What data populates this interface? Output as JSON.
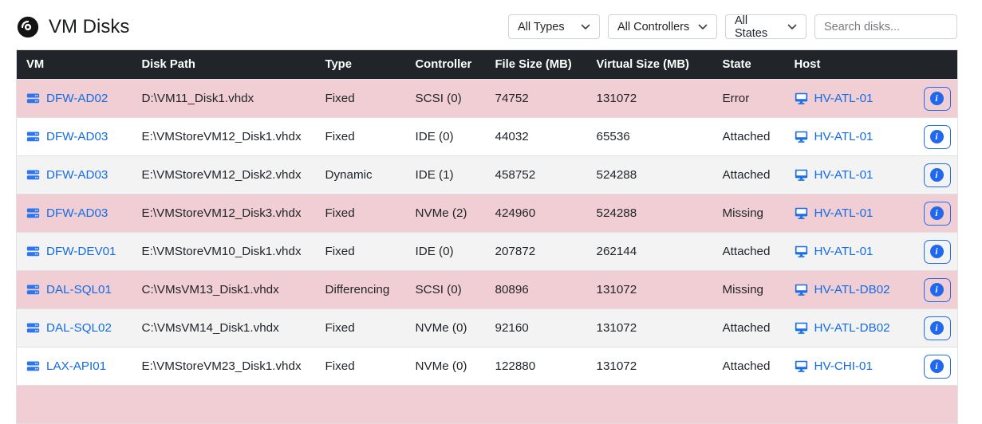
{
  "header": {
    "title": "VM Disks",
    "icon": "disc-icon"
  },
  "filters": {
    "type_filter": "All Types",
    "controller_filter": "All Controllers",
    "state_filter": "All States",
    "search_placeholder": "Search disks..."
  },
  "table": {
    "columns": [
      "VM",
      "Disk Path",
      "Type",
      "Controller",
      "File Size (MB)",
      "Virtual Size (MB)",
      "State",
      "Host"
    ],
    "info_button_label": "i",
    "rows": [
      {
        "vm": "DFW-AD02",
        "disk_path": "D:\\VM11_Disk1.vhdx",
        "type": "Fixed",
        "controller": "SCSI (0)",
        "file_size_mb": "74752",
        "virtual_size_mb": "131072",
        "state": "Error",
        "host": "HV-ATL-01",
        "highlight": "danger",
        "striped": false
      },
      {
        "vm": "DFW-AD03",
        "disk_path": "E:\\VMStoreVM12_Disk1.vhdx",
        "type": "Fixed",
        "controller": "IDE (0)",
        "file_size_mb": "44032",
        "virtual_size_mb": "65536",
        "state": "Attached",
        "host": "HV-ATL-01",
        "highlight": "none",
        "striped": false
      },
      {
        "vm": "DFW-AD03",
        "disk_path": "E:\\VMStoreVM12_Disk2.vhdx",
        "type": "Dynamic",
        "controller": "IDE (1)",
        "file_size_mb": "458752",
        "virtual_size_mb": "524288",
        "state": "Attached",
        "host": "HV-ATL-01",
        "highlight": "none",
        "striped": true
      },
      {
        "vm": "DFW-AD03",
        "disk_path": "E:\\VMStoreVM12_Disk3.vhdx",
        "type": "Fixed",
        "controller": "NVMe (2)",
        "file_size_mb": "424960",
        "virtual_size_mb": "524288",
        "state": "Missing",
        "host": "HV-ATL-01",
        "highlight": "danger",
        "striped": false
      },
      {
        "vm": "DFW-DEV01",
        "disk_path": "E:\\VMStoreVM10_Disk1.vhdx",
        "type": "Fixed",
        "controller": "IDE (0)",
        "file_size_mb": "207872",
        "virtual_size_mb": "262144",
        "state": "Attached",
        "host": "HV-ATL-01",
        "highlight": "none",
        "striped": true
      },
      {
        "vm": "DAL-SQL01",
        "disk_path": "C:\\VMsVM13_Disk1.vhdx",
        "type": "Differencing",
        "controller": "SCSI (0)",
        "file_size_mb": "80896",
        "virtual_size_mb": "131072",
        "state": "Missing",
        "host": "HV-ATL-DB02",
        "highlight": "danger",
        "striped": false
      },
      {
        "vm": "DAL-SQL02",
        "disk_path": "C:\\VMsVM14_Disk1.vhdx",
        "type": "Fixed",
        "controller": "NVMe (0)",
        "file_size_mb": "92160",
        "virtual_size_mb": "131072",
        "state": "Attached",
        "host": "HV-ATL-DB02",
        "highlight": "none",
        "striped": true
      },
      {
        "vm": "LAX-API01",
        "disk_path": "E:\\VMStoreVM23_Disk1.vhdx",
        "type": "Fixed",
        "controller": "NVMe (0)",
        "file_size_mb": "122880",
        "virtual_size_mb": "131072",
        "state": "Attached",
        "host": "HV-CHI-01",
        "highlight": "none",
        "striped": false
      }
    ],
    "partial_row": {
      "highlight": "danger"
    }
  },
  "colors": {
    "header_bg": "#212529",
    "danger_row_bg": "#f0ced3",
    "striped_row_bg": "#f3f3f3",
    "link_blue": "#146ce4",
    "accent_blue": "#1f6ef0"
  }
}
